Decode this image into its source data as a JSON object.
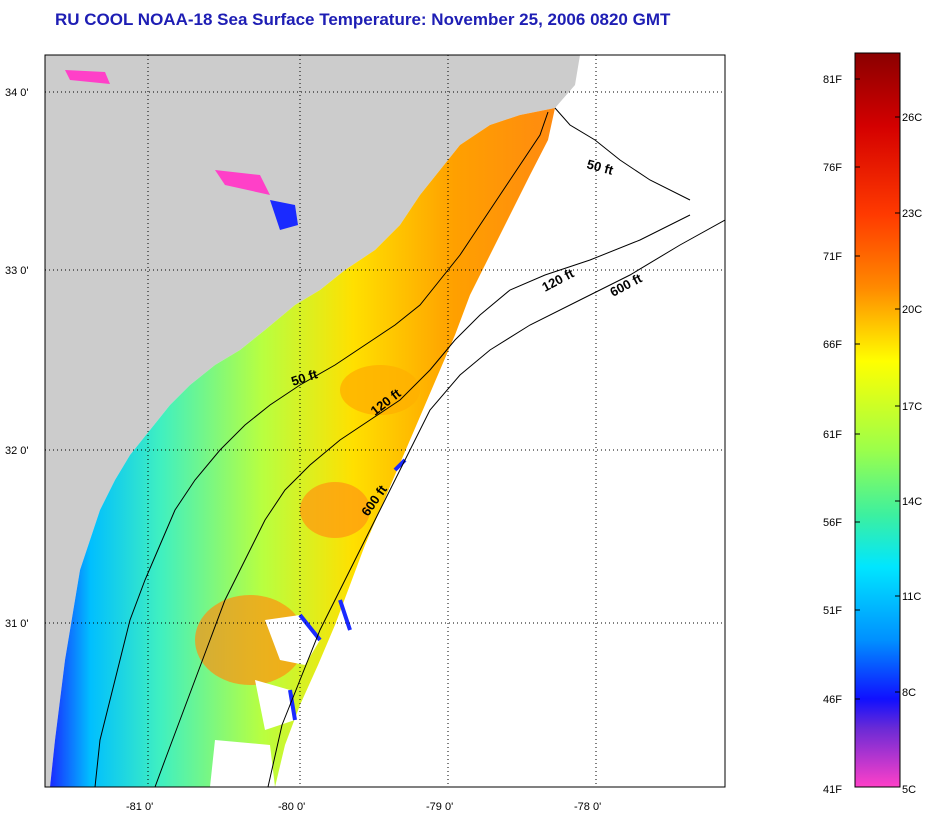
{
  "title": "RU COOL  NOAA-18  Sea Surface Temperature:  November 25, 2006 0820 GMT",
  "map": {
    "lat_ticks": [
      "34 0'",
      "33 0'",
      "32 0'",
      "31 0'"
    ],
    "lon_ticks": [
      "-81 0'",
      "-80 0'",
      "-79 0'",
      "-78 0'"
    ],
    "contour_labels": [
      "50 ft",
      "50 ft",
      "120 ft",
      "120 ft",
      "600 ft",
      "600 ft"
    ],
    "colors": {
      "land": "#cccccc",
      "water_no_data": "#ffffff",
      "grid": "#000000"
    }
  },
  "colorbar": {
    "fahrenheit_labels": [
      "81F",
      "76F",
      "71F",
      "66F",
      "61F",
      "56F",
      "51F",
      "46F",
      "41F"
    ],
    "celsius_labels": [
      "26C",
      "23C",
      "20C",
      "17C",
      "14C",
      "11C",
      "8C",
      "5C"
    ]
  }
}
